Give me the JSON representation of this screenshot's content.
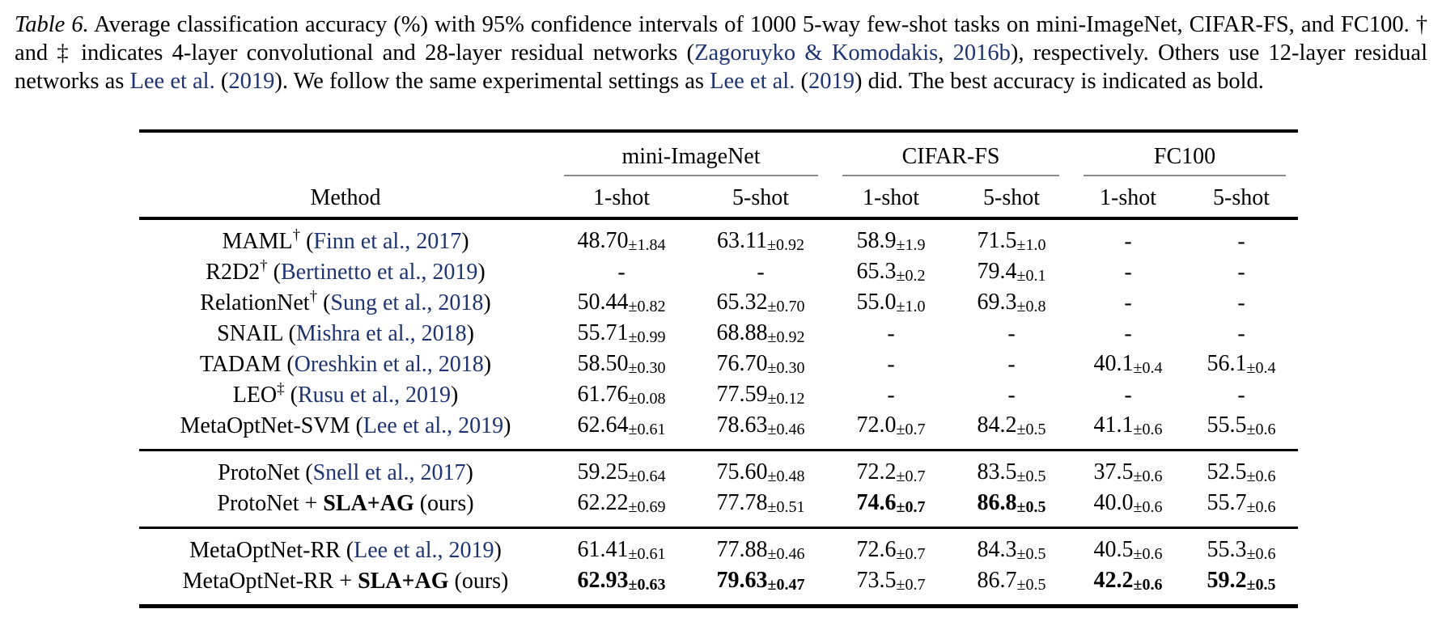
{
  "page": {
    "background": "#ffffff",
    "text_color": "#000000",
    "link_color": "#1c3472"
  },
  "caption": {
    "segments": [
      {
        "t": "Table 6.",
        "italic": true
      },
      {
        "t": " Average classification accuracy (%) with 95% confidence intervals of 1000 5-way few-shot tasks on mini-ImageNet, CIFAR-FS, and FC100.  † and ‡ indicates 4-layer convolutional and 28-layer residual networks ("
      },
      {
        "t": "Zagoruyko & Komodakis",
        "link": true
      },
      {
        "t": ", "
      },
      {
        "t": "2016b",
        "link": true
      },
      {
        "t": "), respectively. Others use 12-layer residual networks as "
      },
      {
        "t": "Lee et al.",
        "link": true
      },
      {
        "t": " ("
      },
      {
        "t": "2019",
        "link": true
      },
      {
        "t": "). We follow the same experimental settings as "
      },
      {
        "t": "Lee et al.",
        "link": true
      },
      {
        "t": " ("
      },
      {
        "t": "2019",
        "link": true
      },
      {
        "t": ") did. The best accuracy is indicated as bold."
      }
    ]
  },
  "table": {
    "method_header": "Method",
    "groups": [
      "mini-ImageNet",
      "CIFAR-FS",
      "FC100"
    ],
    "sub_headers": [
      "1-shot",
      "5-shot",
      "1-shot",
      "5-shot",
      "1-shot",
      "5-shot"
    ],
    "sections": [
      {
        "rows": [
          {
            "method": [
              {
                "t": "MAML"
              },
              {
                "t": "†",
                "sup": true
              },
              {
                "t": " ("
              },
              {
                "t": "Finn et al., 2017",
                "link": true
              },
              {
                "t": ")"
              }
            ],
            "cells": [
              {
                "v": "48.70",
                "pm": "±1.84"
              },
              {
                "v": "63.11",
                "pm": "±0.92"
              },
              {
                "v": "58.9",
                "pm": "±1.9"
              },
              {
                "v": "71.5",
                "pm": "±1.0"
              },
              {
                "v": "-"
              },
              {
                "v": "-"
              }
            ]
          },
          {
            "method": [
              {
                "t": "R2D2"
              },
              {
                "t": "†",
                "sup": true
              },
              {
                "t": " ("
              },
              {
                "t": "Bertinetto et al., 2019",
                "link": true
              },
              {
                "t": ")"
              }
            ],
            "cells": [
              {
                "v": "-"
              },
              {
                "v": "-"
              },
              {
                "v": "65.3",
                "pm": "±0.2"
              },
              {
                "v": "79.4",
                "pm": "±0.1"
              },
              {
                "v": "-"
              },
              {
                "v": "-"
              }
            ]
          },
          {
            "method": [
              {
                "t": "RelationNet"
              },
              {
                "t": "†",
                "sup": true
              },
              {
                "t": " ("
              },
              {
                "t": "Sung et al., 2018",
                "link": true
              },
              {
                "t": ")"
              }
            ],
            "cells": [
              {
                "v": "50.44",
                "pm": "±0.82"
              },
              {
                "v": "65.32",
                "pm": "±0.70"
              },
              {
                "v": "55.0",
                "pm": "±1.0"
              },
              {
                "v": "69.3",
                "pm": "±0.8"
              },
              {
                "v": "-"
              },
              {
                "v": "-"
              }
            ]
          },
          {
            "method": [
              {
                "t": "SNAIL ("
              },
              {
                "t": "Mishra et al., 2018",
                "link": true
              },
              {
                "t": ")"
              }
            ],
            "cells": [
              {
                "v": "55.71",
                "pm": "±0.99"
              },
              {
                "v": "68.88",
                "pm": "±0.92"
              },
              {
                "v": "-"
              },
              {
                "v": "-"
              },
              {
                "v": "-"
              },
              {
                "v": "-"
              }
            ]
          },
          {
            "method": [
              {
                "t": "TADAM ("
              },
              {
                "t": "Oreshkin et al., 2018",
                "link": true
              },
              {
                "t": ")"
              }
            ],
            "cells": [
              {
                "v": "58.50",
                "pm": "±0.30"
              },
              {
                "v": "76.70",
                "pm": "±0.30"
              },
              {
                "v": "-"
              },
              {
                "v": "-"
              },
              {
                "v": "40.1",
                "pm": "±0.4"
              },
              {
                "v": "56.1",
                "pm": "±0.4"
              }
            ]
          },
          {
            "method": [
              {
                "t": "LEO"
              },
              {
                "t": "‡",
                "sup": true
              },
              {
                "t": " ("
              },
              {
                "t": "Rusu et al., 2019",
                "link": true
              },
              {
                "t": ")"
              }
            ],
            "cells": [
              {
                "v": "61.76",
                "pm": "±0.08"
              },
              {
                "v": "77.59",
                "pm": "±0.12"
              },
              {
                "v": "-"
              },
              {
                "v": "-"
              },
              {
                "v": "-"
              },
              {
                "v": "-"
              }
            ]
          },
          {
            "method": [
              {
                "t": "MetaOptNet-SVM ("
              },
              {
                "t": "Lee et al., 2019",
                "link": true
              },
              {
                "t": ")"
              }
            ],
            "cells": [
              {
                "v": "62.64",
                "pm": "±0.61"
              },
              {
                "v": "78.63",
                "pm": "±0.46"
              },
              {
                "v": "72.0",
                "pm": "±0.7"
              },
              {
                "v": "84.2",
                "pm": "±0.5"
              },
              {
                "v": "41.1",
                "pm": "±0.6"
              },
              {
                "v": "55.5",
                "pm": "±0.6"
              }
            ]
          }
        ]
      },
      {
        "rows": [
          {
            "method": [
              {
                "t": "ProtoNet ("
              },
              {
                "t": "Snell et al., 2017",
                "link": true
              },
              {
                "t": ")"
              }
            ],
            "cells": [
              {
                "v": "59.25",
                "pm": "±0.64"
              },
              {
                "v": "75.60",
                "pm": "±0.48"
              },
              {
                "v": "72.2",
                "pm": "±0.7"
              },
              {
                "v": "83.5",
                "pm": "±0.5"
              },
              {
                "v": "37.5",
                "pm": "±0.6"
              },
              {
                "v": "52.5",
                "pm": "±0.6"
              }
            ]
          },
          {
            "method": [
              {
                "t": "ProtoNet + "
              },
              {
                "t": "SLA+AG",
                "bold": true
              },
              {
                "t": " (ours)"
              }
            ],
            "cells": [
              {
                "v": "62.22",
                "pm": "±0.69"
              },
              {
                "v": "77.78",
                "pm": "±0.51"
              },
              {
                "v": "74.6",
                "pm": "±0.7",
                "bold": true
              },
              {
                "v": "86.8",
                "pm": "±0.5",
                "bold": true
              },
              {
                "v": "40.0",
                "pm": "±0.6"
              },
              {
                "v": "55.7",
                "pm": "±0.6"
              }
            ]
          }
        ]
      },
      {
        "rows": [
          {
            "method": [
              {
                "t": "MetaOptNet-RR ("
              },
              {
                "t": "Lee et al., 2019",
                "link": true
              },
              {
                "t": ")"
              }
            ],
            "cells": [
              {
                "v": "61.41",
                "pm": "±0.61"
              },
              {
                "v": "77.88",
                "pm": "±0.46"
              },
              {
                "v": "72.6",
                "pm": "±0.7"
              },
              {
                "v": "84.3",
                "pm": "±0.5"
              },
              {
                "v": "40.5",
                "pm": "±0.6"
              },
              {
                "v": "55.3",
                "pm": "±0.6"
              }
            ]
          },
          {
            "method": [
              {
                "t": "MetaOptNet-RR + "
              },
              {
                "t": "SLA+AG",
                "bold": true
              },
              {
                "t": " (ours)"
              }
            ],
            "cells": [
              {
                "v": "62.93",
                "pm": "±0.63",
                "bold": true
              },
              {
                "v": "79.63",
                "pm": "±0.47",
                "bold": true
              },
              {
                "v": "73.5",
                "pm": "±0.7"
              },
              {
                "v": "86.7",
                "pm": "±0.5"
              },
              {
                "v": "42.2",
                "pm": "±0.6",
                "bold": true
              },
              {
                "v": "59.2",
                "pm": "±0.5",
                "bold": true
              }
            ]
          }
        ]
      }
    ]
  }
}
